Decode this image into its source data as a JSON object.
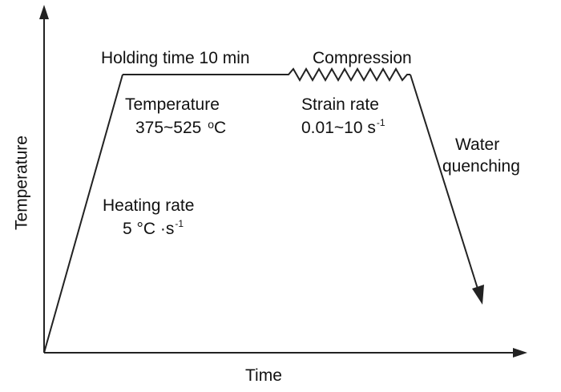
{
  "axes": {
    "x_title": "Time",
    "y_title": "Temperature"
  },
  "stages": {
    "holding": "Holding time 10 min",
    "compression": "Compression",
    "water_line1": "Water",
    "water_line2": "quenching"
  },
  "temperature": {
    "label": "Temperature",
    "range": "375~525",
    "unit": "C",
    "unit_prefix": "o"
  },
  "strain_rate": {
    "label": "Strain rate",
    "range": "0.01~10 s",
    "exponent": "-1"
  },
  "heating": {
    "label": "Heating rate",
    "value": "5 °C ·s",
    "exponent": "-1"
  },
  "colors": {
    "line": "#222222",
    "text": "#111111"
  }
}
